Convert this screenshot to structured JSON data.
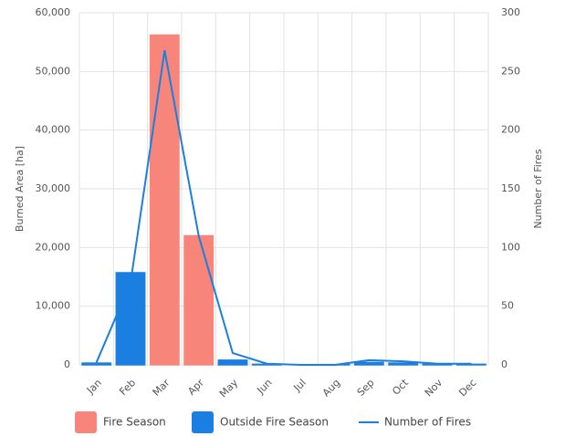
{
  "chart_data": {
    "type": "bar",
    "categories": [
      "Jan",
      "Feb",
      "Mar",
      "Apr",
      "May",
      "Jun",
      "Jul",
      "Aug",
      "Sep",
      "Oct",
      "Nov",
      "Dec"
    ],
    "series": [
      {
        "name": "Fire Season",
        "color": "#f8857a",
        "type": "bar",
        "values": [
          null,
          null,
          56200,
          22000,
          null,
          null,
          null,
          null,
          null,
          null,
          null,
          null
        ]
      },
      {
        "name": "Outside Fire Season",
        "color": "#1a7fe0",
        "type": "bar",
        "values": [
          300,
          15700,
          null,
          null,
          800,
          100,
          0,
          50,
          400,
          300,
          100,
          100
        ]
      },
      {
        "name": "Number of Fires",
        "color": "#1a7fe0",
        "type": "line",
        "axis": "y2",
        "values": [
          2,
          70,
          268,
          110,
          10,
          1,
          0,
          0,
          4,
          3,
          1,
          1
        ]
      }
    ],
    "ylabel": "Burned Area [ha]",
    "y2label": "Number of Fires",
    "ylim": [
      0,
      60000
    ],
    "yticks": [
      0,
      {
        "value": 10000,
        "label": "10,000"
      },
      {
        "value": 20000,
        "label": "20,000"
      },
      {
        "value": 30000,
        "label": "30,000"
      },
      {
        "value": 40000,
        "label": "40,000"
      },
      {
        "value": 50000,
        "label": "50,000"
      },
      {
        "value": 60000,
        "label": "60,000"
      }
    ],
    "y2lim": [
      0,
      300
    ],
    "y2ticks": [
      0,
      50,
      100,
      150,
      200,
      250,
      300
    ],
    "grid": true,
    "legend": "bottom"
  }
}
